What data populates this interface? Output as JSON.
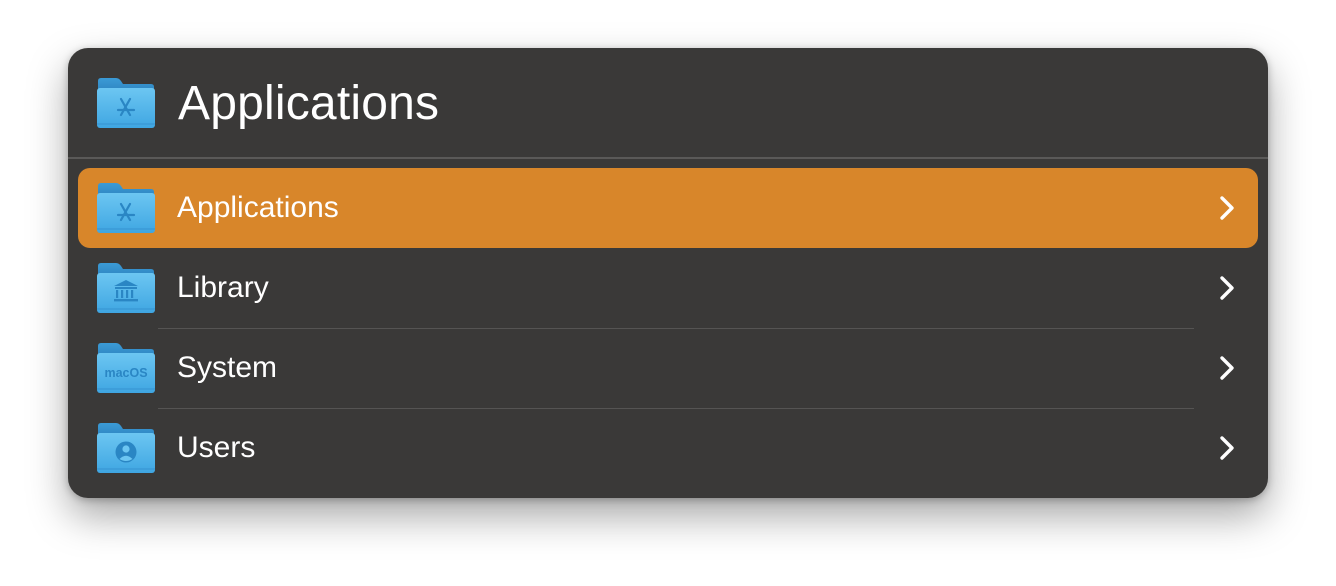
{
  "header": {
    "title": "Applications",
    "icon": "applications-folder-icon"
  },
  "items": [
    {
      "label": "Applications",
      "icon": "applications-folder-icon",
      "selected": true
    },
    {
      "label": "Library",
      "icon": "library-folder-icon",
      "selected": false
    },
    {
      "label": "System",
      "icon": "system-folder-icon",
      "icon_text": "macOS",
      "selected": false
    },
    {
      "label": "Users",
      "icon": "users-folder-icon",
      "selected": false
    }
  ],
  "colors": {
    "panel_background": "#3a3938",
    "selection": "#d8862a",
    "folder_blue": "#4fb3ea",
    "text": "#ffffff"
  }
}
